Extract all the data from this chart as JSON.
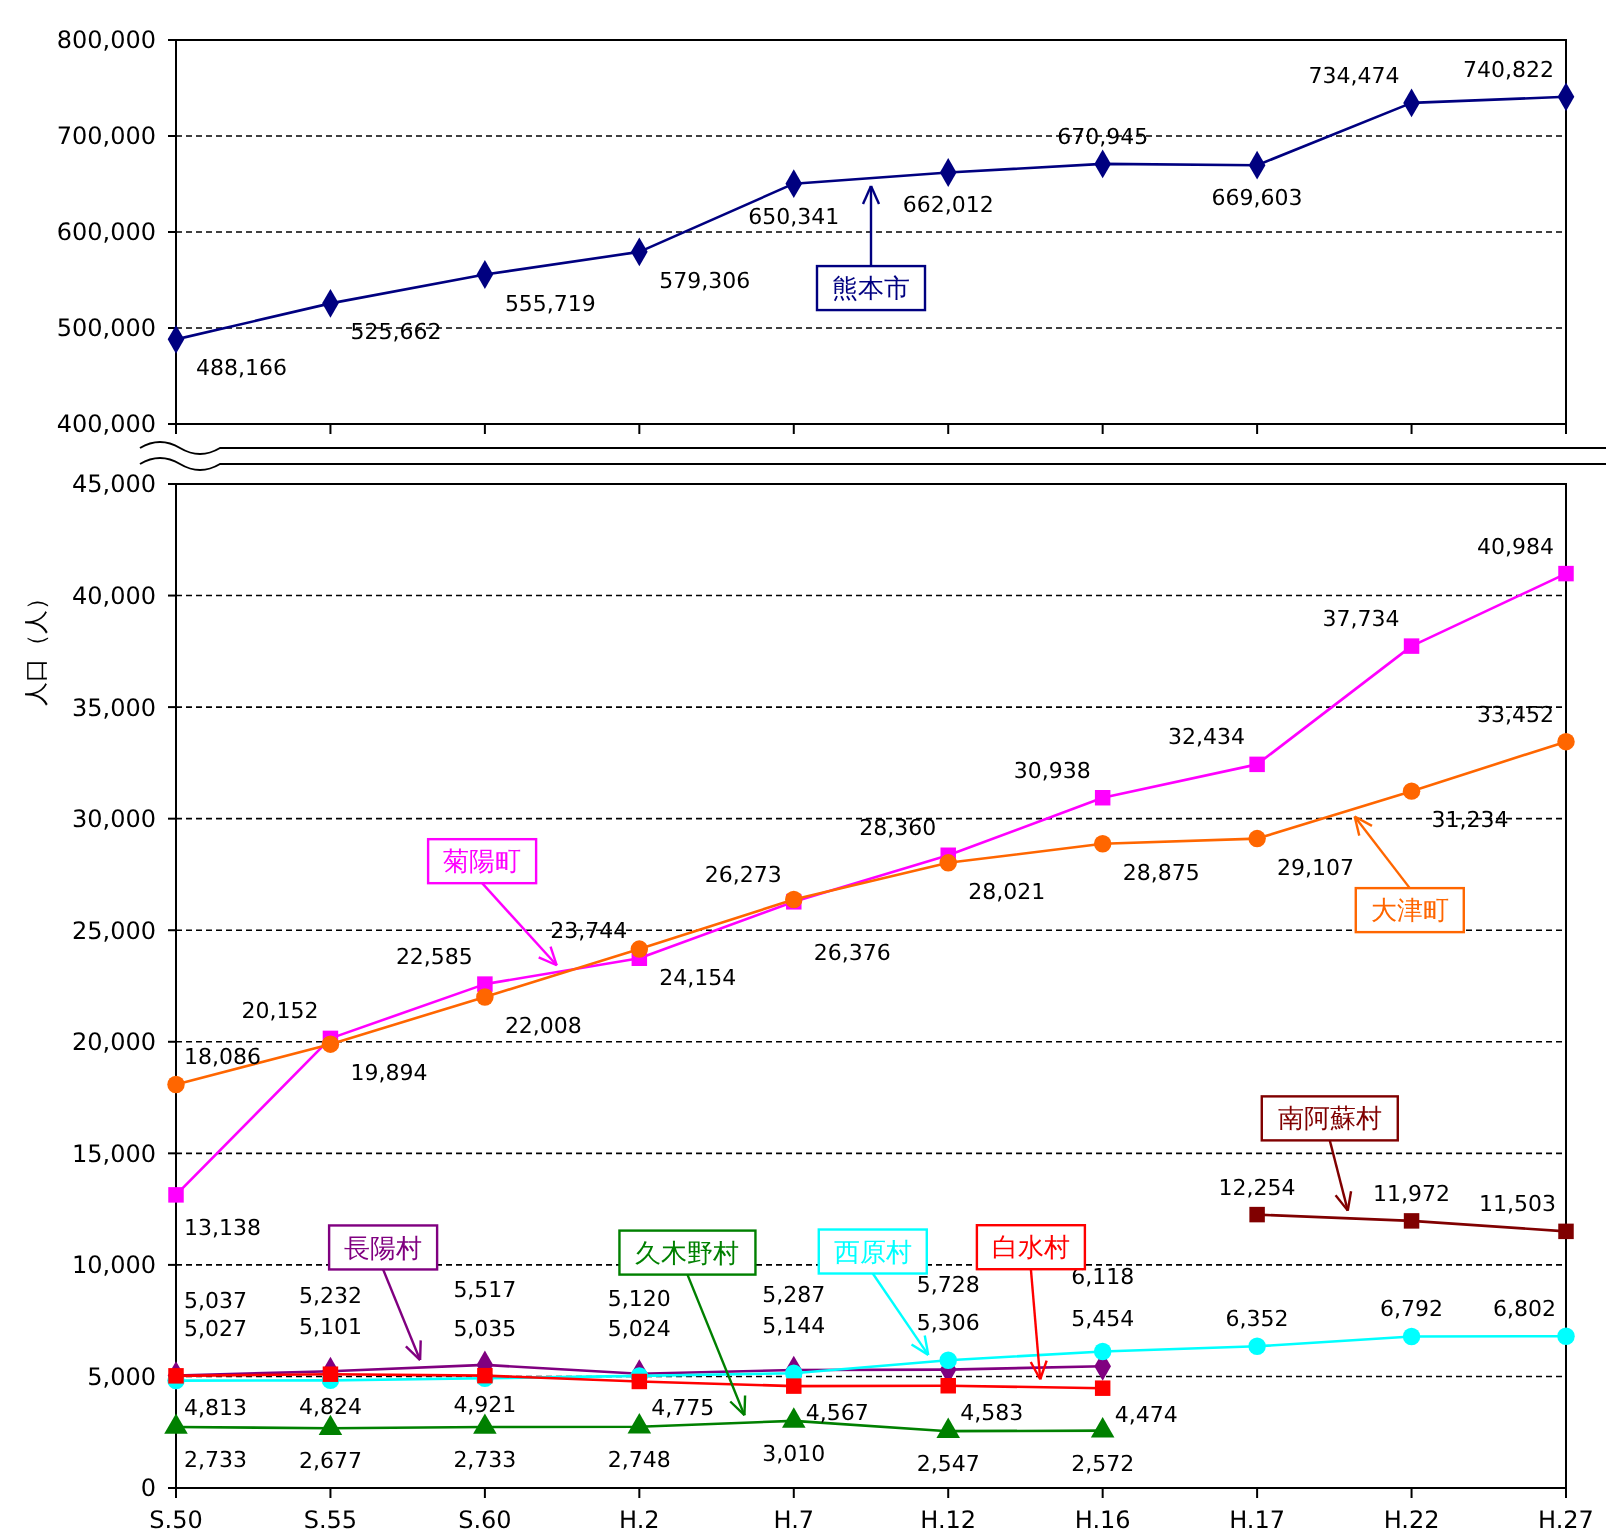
{
  "chart_data": [
    {
      "type": "line",
      "categories": [
        null,
        null,
        null,
        null,
        null,
        null,
        null,
        null,
        null,
        null
      ],
      "ylim": [
        400000,
        800000
      ],
      "yticks": [
        {
          "value": 400000,
          "label": "400,000"
        },
        {
          "value": 500000,
          "label": "500,000"
        },
        {
          "value": 600000,
          "label": "600,000"
        },
        {
          "value": 700000,
          "label": "700,000"
        },
        {
          "value": 800000,
          "label": "800,000"
        }
      ],
      "grid": "y",
      "tick_labels": "y",
      "series": [
        {
          "name": "熊本市",
          "color": "#000080",
          "marker": "diamond",
          "values": [
            488166,
            525662,
            555719,
            579306,
            650341,
            662012,
            670945,
            669603,
            734474,
            740822
          ],
          "value_labels": [
            "488,166",
            "525,662",
            "555,719",
            "579,306",
            "650,341",
            "662,012",
            "670,945",
            "669,603",
            "734,474",
            "740,822"
          ]
        }
      ]
    },
    {
      "type": "line",
      "ylabel": "人口（人）",
      "categories": [
        "S.50",
        "S.55",
        "S.60",
        "H.2",
        "H.7",
        "H.12",
        "H.16",
        "H.17",
        "H.22",
        "H.27"
      ],
      "ylim": [
        0,
        45000
      ],
      "yticks": [
        0,
        {
          "value": 5000,
          "label": "5,000"
        },
        {
          "value": 10000,
          "label": "10,000"
        },
        {
          "value": 15000,
          "label": "15,000"
        },
        {
          "value": 20000,
          "label": "20,000"
        },
        {
          "value": 25000,
          "label": "25,000"
        },
        {
          "value": 30000,
          "label": "30,000"
        },
        {
          "value": 35000,
          "label": "35,000"
        },
        {
          "value": 40000,
          "label": "40,000"
        },
        {
          "value": 45000,
          "label": "45,000"
        }
      ],
      "grid": "y",
      "series": [
        {
          "name": "菊陽町",
          "color": "#ff00ff",
          "marker": "square",
          "values": [
            13138,
            20152,
            22585,
            23744,
            26273,
            28360,
            30938,
            32434,
            37734,
            40984
          ],
          "value_labels": [
            "13,138",
            "20,152",
            "22,585",
            "23,744",
            "26,273",
            "28,360",
            "30,938",
            "32,434",
            "37,734",
            "40,984"
          ]
        },
        {
          "name": "大津町",
          "color": "#ff6600",
          "marker": "circle",
          "values": [
            18086,
            19894,
            22008,
            24154,
            26376,
            28021,
            28875,
            29107,
            31234,
            33452
          ],
          "value_labels": [
            "18,086",
            "19,894",
            "22,008",
            "24,154",
            "26,376",
            "28,021",
            "28,875",
            "29,107",
            "31,234",
            "33,452"
          ]
        },
        {
          "name": "南阿蘇村",
          "color": "#800000",
          "marker": "square",
          "values": [
            null,
            null,
            null,
            null,
            null,
            null,
            null,
            12254,
            11972,
            11503
          ],
          "value_labels": [
            null,
            null,
            null,
            null,
            null,
            null,
            null,
            "12,254",
            "11,972",
            "11,503"
          ]
        },
        {
          "name": "長陽村",
          "color": "#800080",
          "marker": "diamond",
          "values": [
            5037,
            5232,
            5517,
            5120,
            5287,
            5306,
            5454,
            null,
            null,
            null
          ],
          "value_labels": [
            "5,037",
            "5,232",
            "5,517",
            "5,120",
            "5,287",
            "5,306",
            "5,454",
            null,
            null,
            null
          ]
        },
        {
          "name": "久木野村",
          "color": "#008000",
          "marker": "triangle",
          "values": [
            2733,
            2677,
            2733,
            2748,
            3010,
            2547,
            2572,
            null,
            null,
            null
          ],
          "value_labels": [
            "2,733",
            "2,677",
            "2,733",
            "2,748",
            "3,010",
            "2,547",
            "2,572",
            null,
            null,
            null
          ]
        },
        {
          "name": "西原村",
          "color": "#00ffff",
          "marker": "circle",
          "values": [
            4813,
            4824,
            4921,
            5024,
            5144,
            5728,
            6118,
            6352,
            6792,
            6802
          ],
          "value_labels": [
            "4,813",
            "4,824",
            "4,921",
            "5,024",
            "5,144",
            "5,728",
            "6,118",
            "6,352",
            "6,792",
            "6,802"
          ]
        },
        {
          "name": "白水村",
          "color": "#ff0000",
          "marker": "square",
          "values": [
            5027,
            5101,
            5035,
            4775,
            4567,
            4583,
            4474,
            null,
            null,
            null
          ],
          "value_labels": [
            "5,027",
            "5,101",
            "5,035",
            "4,775",
            "4,567",
            "4,583",
            "4,474",
            null,
            null,
            null
          ]
        }
      ]
    }
  ]
}
